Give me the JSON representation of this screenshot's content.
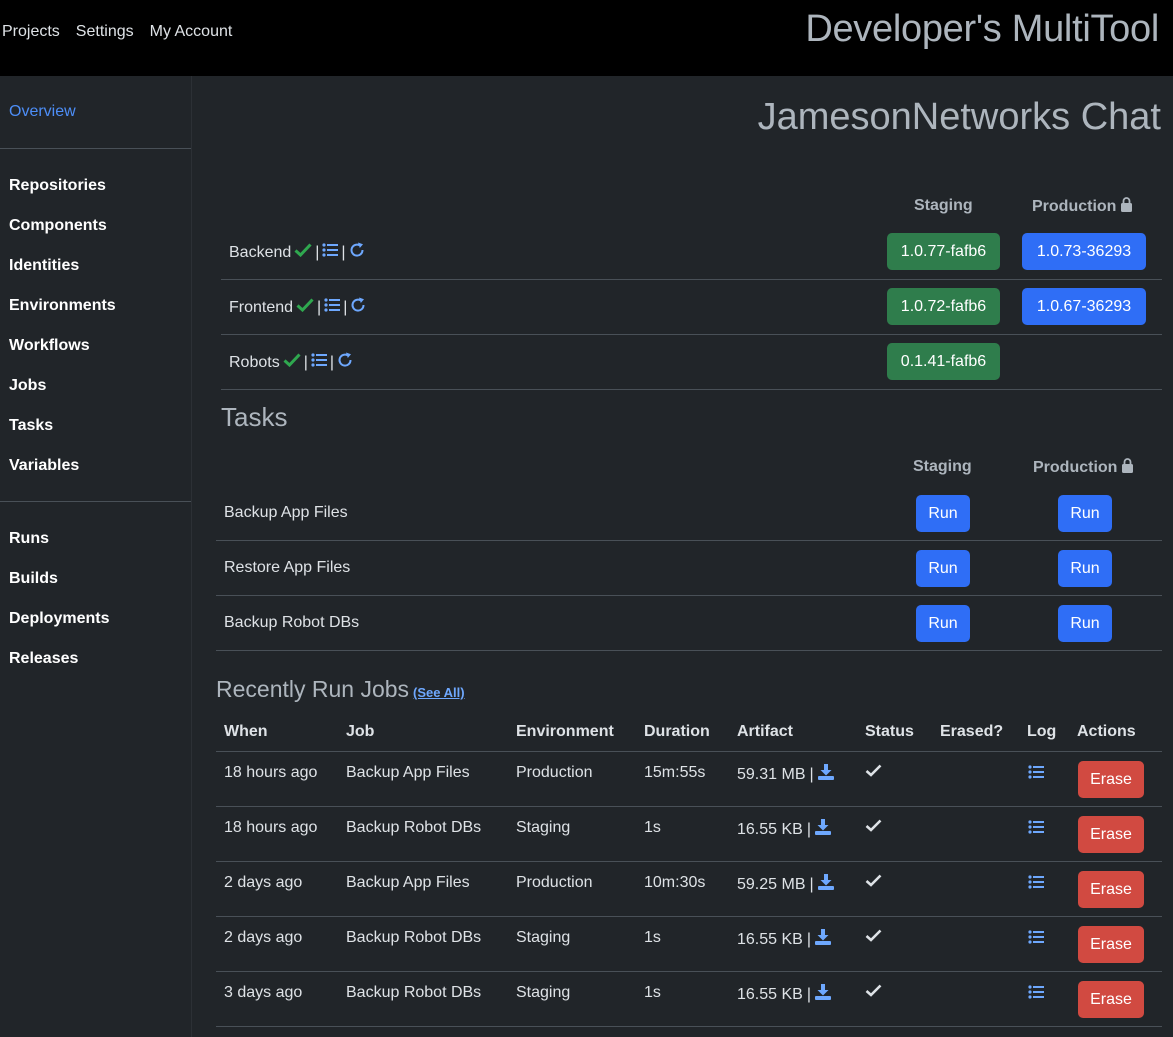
{
  "nav": {
    "links": [
      "Projects",
      "Settings",
      "My Account"
    ],
    "brand": "Developer's MultiTool"
  },
  "sidebar": {
    "overview": "Overview",
    "group1": [
      "Repositories",
      "Components",
      "Identities",
      "Environments",
      "Workflows",
      "Jobs",
      "Tasks",
      "Variables"
    ],
    "group2": [
      "Runs",
      "Builds",
      "Deployments",
      "Releases"
    ]
  },
  "project": {
    "title": "JamesonNetworks Chat"
  },
  "components": {
    "staging_header": "Staging",
    "production_header": "Production",
    "separator": "|",
    "rows": [
      {
        "name": "Backend",
        "staging": "1.0.77-fafb6",
        "production": "1.0.73-36293"
      },
      {
        "name": "Frontend",
        "staging": "1.0.72-fafb6",
        "production": "1.0.67-36293"
      },
      {
        "name": "Robots",
        "staging": "0.1.41-fafb6",
        "production": ""
      }
    ]
  },
  "tasks": {
    "title": "Tasks",
    "staging_header": "Staging",
    "production_header": "Production",
    "run_label": "Run",
    "rows": [
      "Backup App Files",
      "Restore App Files",
      "Backup Robot DBs"
    ]
  },
  "jobs": {
    "title": "Recently Run Jobs",
    "see_all": "(See All)",
    "separator": "|",
    "erase_label": "Erase",
    "columns": [
      "When",
      "Job",
      "Environment",
      "Duration",
      "Artifact",
      "Status",
      "Erased?",
      "Log",
      "Actions"
    ],
    "rows": [
      {
        "when": "18 hours ago",
        "job": "Backup App Files",
        "env": "Production",
        "duration": "15m:55s",
        "artifact": "59.31 MB"
      },
      {
        "when": "18 hours ago",
        "job": "Backup Robot DBs",
        "env": "Staging",
        "duration": "1s",
        "artifact": "16.55 KB"
      },
      {
        "when": "2 days ago",
        "job": "Backup App Files",
        "env": "Production",
        "duration": "10m:30s",
        "artifact": "59.25 MB"
      },
      {
        "when": "2 days ago",
        "job": "Backup Robot DBs",
        "env": "Staging",
        "duration": "1s",
        "artifact": "16.55 KB"
      },
      {
        "when": "3 days ago",
        "job": "Backup Robot DBs",
        "env": "Staging",
        "duration": "1s",
        "artifact": "16.55 KB"
      }
    ]
  },
  "icons": {
    "check_green": "check-icon",
    "list": "list-icon",
    "refresh": "refresh-icon",
    "lock": "lock-icon",
    "download": "download-icon",
    "status_check": "check-icon"
  },
  "colors": {
    "accent_blue": "#2f6ef6",
    "staging_green": "#2f7d4c",
    "erase_red": "#d14a41",
    "link_blue": "#4d8ef7",
    "success_check": "#2fa84f"
  }
}
